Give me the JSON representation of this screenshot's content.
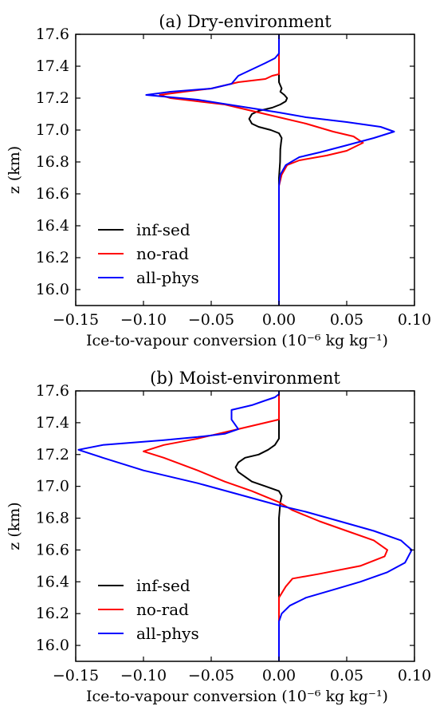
{
  "figure": {
    "panels": [
      {
        "title": "(a) Dry-environment"
      },
      {
        "title": "(b) Moist-environment"
      }
    ]
  },
  "colors": {
    "inf-sed": "#000000",
    "no-rad": "#ff0000",
    "all-phys": "#0000ff"
  },
  "chart_data": [
    {
      "type": "line",
      "title": "(a) Dry-environment",
      "xlabel": "Ice-to-vapour conversion (10⁻⁶ kg kg⁻¹)",
      "ylabel": "z (km)",
      "xlim": [
        -0.15,
        0.1
      ],
      "ylim": [
        15.9,
        17.6
      ],
      "xticks": [
        "−0.15",
        "−0.10",
        "−0.05",
        "0.00",
        "0.05",
        "0.10"
      ],
      "yticks": [
        "16.0",
        "16.2",
        "16.4",
        "16.6",
        "16.8",
        "17.0",
        "17.2",
        "17.4",
        "17.6"
      ],
      "legend": {
        "position": "lower-left",
        "entries": [
          "inf-sed",
          "no-rad",
          "all-phys"
        ]
      },
      "series": [
        {
          "name": "inf-sed",
          "color": "#000000",
          "points": [
            [
              0,
              15.9
            ],
            [
              0,
              16.5
            ],
            [
              0,
              16.7
            ],
            [
              0.0008,
              16.8
            ],
            [
              0.001,
              16.88
            ],
            [
              0.0015,
              16.92
            ],
            [
              0.002,
              16.95
            ],
            [
              0,
              16.98
            ],
            [
              -0.006,
              17.0
            ],
            [
              -0.015,
              17.02
            ],
            [
              -0.02,
              17.04
            ],
            [
              -0.022,
              17.07
            ],
            [
              -0.02,
              17.1
            ],
            [
              -0.015,
              17.12
            ],
            [
              -0.005,
              17.14
            ],
            [
              0.001,
              17.16
            ],
            [
              0.005,
              17.18
            ],
            [
              0.006,
              17.2
            ],
            [
              0.004,
              17.22
            ],
            [
              0.001,
              17.24
            ],
            [
              0.002,
              17.26
            ],
            [
              0.001,
              17.28
            ],
            [
              0,
              17.3
            ],
            [
              0,
              17.6
            ]
          ]
        },
        {
          "name": "no-rad",
          "color": "#ff0000",
          "points": [
            [
              0,
              15.9
            ],
            [
              0,
              16.65
            ],
            [
              0.002,
              16.72
            ],
            [
              0.006,
              16.78
            ],
            [
              0.015,
              16.81
            ],
            [
              0.035,
              16.84
            ],
            [
              0.05,
              16.87
            ],
            [
              0.062,
              16.92
            ],
            [
              0.055,
              16.96
            ],
            [
              0.04,
              16.99
            ],
            [
              0.02,
              17.04
            ],
            [
              0,
              17.08
            ],
            [
              -0.02,
              17.12
            ],
            [
              -0.04,
              17.16
            ],
            [
              -0.08,
              17.2
            ],
            [
              -0.088,
              17.22
            ],
            [
              -0.07,
              17.24
            ],
            [
              -0.05,
              17.26
            ],
            [
              -0.03,
              17.3
            ],
            [
              -0.01,
              17.32
            ],
            [
              -0.005,
              17.34
            ],
            [
              0,
              17.35
            ],
            [
              0,
              17.6
            ]
          ]
        },
        {
          "name": "all-phys",
          "color": "#0000ff",
          "points": [
            [
              0,
              15.9
            ],
            [
              0,
              16.65
            ],
            [
              0.001,
              16.72
            ],
            [
              0.005,
              16.78
            ],
            [
              0.015,
              16.83
            ],
            [
              0.03,
              16.86
            ],
            [
              0.048,
              16.9
            ],
            [
              0.07,
              16.95
            ],
            [
              0.085,
              16.99
            ],
            [
              0.075,
              17.02
            ],
            [
              0.05,
              17.05
            ],
            [
              0.02,
              17.08
            ],
            [
              0,
              17.11
            ],
            [
              -0.03,
              17.15
            ],
            [
              -0.06,
              17.19
            ],
            [
              -0.098,
              17.22
            ],
            [
              -0.08,
              17.24
            ],
            [
              -0.05,
              17.26
            ],
            [
              -0.035,
              17.29
            ],
            [
              -0.03,
              17.34
            ],
            [
              -0.02,
              17.38
            ],
            [
              -0.01,
              17.42
            ],
            [
              -0.003,
              17.45
            ],
            [
              -0.001,
              17.47
            ],
            [
              0,
              17.48
            ],
            [
              0,
              17.6
            ]
          ]
        }
      ]
    },
    {
      "type": "line",
      "title": "(b) Moist-environment",
      "xlabel": "Ice-to-vapour conversion (10⁻⁶ kg kg⁻¹)",
      "ylabel": "z (km)",
      "xlim": [
        -0.15,
        0.1
      ],
      "ylim": [
        15.9,
        17.6
      ],
      "xticks": [
        "−0.15",
        "−0.10",
        "−0.05",
        "0.00",
        "0.05",
        "0.10"
      ],
      "yticks": [
        "16.0",
        "16.2",
        "16.4",
        "16.6",
        "16.8",
        "17.0",
        "17.2",
        "17.4",
        "17.6"
      ],
      "legend": {
        "position": "lower-left",
        "entries": [
          "inf-sed",
          "no-rad",
          "all-phys"
        ]
      },
      "series": [
        {
          "name": "inf-sed",
          "color": "#000000",
          "points": [
            [
              0,
              15.9
            ],
            [
              0,
              16.8
            ],
            [
              0.001,
              16.9
            ],
            [
              0.002,
              16.94
            ],
            [
              0,
              16.97
            ],
            [
              -0.01,
              17.0
            ],
            [
              -0.02,
              17.03
            ],
            [
              -0.025,
              17.06
            ],
            [
              -0.03,
              17.09
            ],
            [
              -0.032,
              17.12
            ],
            [
              -0.03,
              17.15
            ],
            [
              -0.025,
              17.18
            ],
            [
              -0.015,
              17.2
            ],
            [
              -0.008,
              17.23
            ],
            [
              -0.003,
              17.26
            ],
            [
              0,
              17.3
            ],
            [
              0,
              17.6
            ]
          ]
        },
        {
          "name": "no-rad",
          "color": "#ff0000",
          "points": [
            [
              0,
              15.9
            ],
            [
              0,
              16.3
            ],
            [
              0.005,
              16.37
            ],
            [
              0.01,
              16.42
            ],
            [
              0.03,
              16.45
            ],
            [
              0.06,
              16.5
            ],
            [
              0.078,
              16.56
            ],
            [
              0.08,
              16.6
            ],
            [
              0.07,
              16.66
            ],
            [
              0.05,
              16.72
            ],
            [
              0.03,
              16.78
            ],
            [
              0.01,
              16.85
            ],
            [
              0,
              16.9
            ],
            [
              -0.02,
              16.97
            ],
            [
              -0.04,
              17.03
            ],
            [
              -0.06,
              17.1
            ],
            [
              -0.085,
              17.18
            ],
            [
              -0.1,
              17.22
            ],
            [
              -0.085,
              17.26
            ],
            [
              -0.06,
              17.3
            ],
            [
              -0.045,
              17.33
            ],
            [
              -0.03,
              17.36
            ],
            [
              -0.015,
              17.39
            ],
            [
              -0.005,
              17.41
            ],
            [
              0,
              17.42
            ],
            [
              0,
              17.6
            ]
          ]
        },
        {
          "name": "all-phys",
          "color": "#0000ff",
          "points": [
            [
              0,
              15.9
            ],
            [
              0,
              16.15
            ],
            [
              0.002,
              16.2
            ],
            [
              0.008,
              16.25
            ],
            [
              0.02,
              16.3
            ],
            [
              0.04,
              16.35
            ],
            [
              0.06,
              16.4
            ],
            [
              0.08,
              16.46
            ],
            [
              0.093,
              16.52
            ],
            [
              0.098,
              16.6
            ],
            [
              0.09,
              16.66
            ],
            [
              0.07,
              16.72
            ],
            [
              0.045,
              16.78
            ],
            [
              0.02,
              16.84
            ],
            [
              0,
              16.88
            ],
            [
              -0.03,
              16.95
            ],
            [
              -0.06,
              17.02
            ],
            [
              -0.1,
              17.1
            ],
            [
              -0.13,
              17.18
            ],
            [
              -0.148,
              17.23
            ],
            [
              -0.13,
              17.26
            ],
            [
              -0.085,
              17.29
            ],
            [
              -0.06,
              17.31
            ],
            [
              -0.04,
              17.33
            ],
            [
              -0.03,
              17.36
            ],
            [
              -0.035,
              17.42
            ],
            [
              -0.035,
              17.48
            ],
            [
              -0.02,
              17.51
            ],
            [
              -0.01,
              17.54
            ],
            [
              -0.003,
              17.56
            ],
            [
              0,
              17.58
            ],
            [
              0,
              17.6
            ]
          ]
        }
      ]
    }
  ]
}
